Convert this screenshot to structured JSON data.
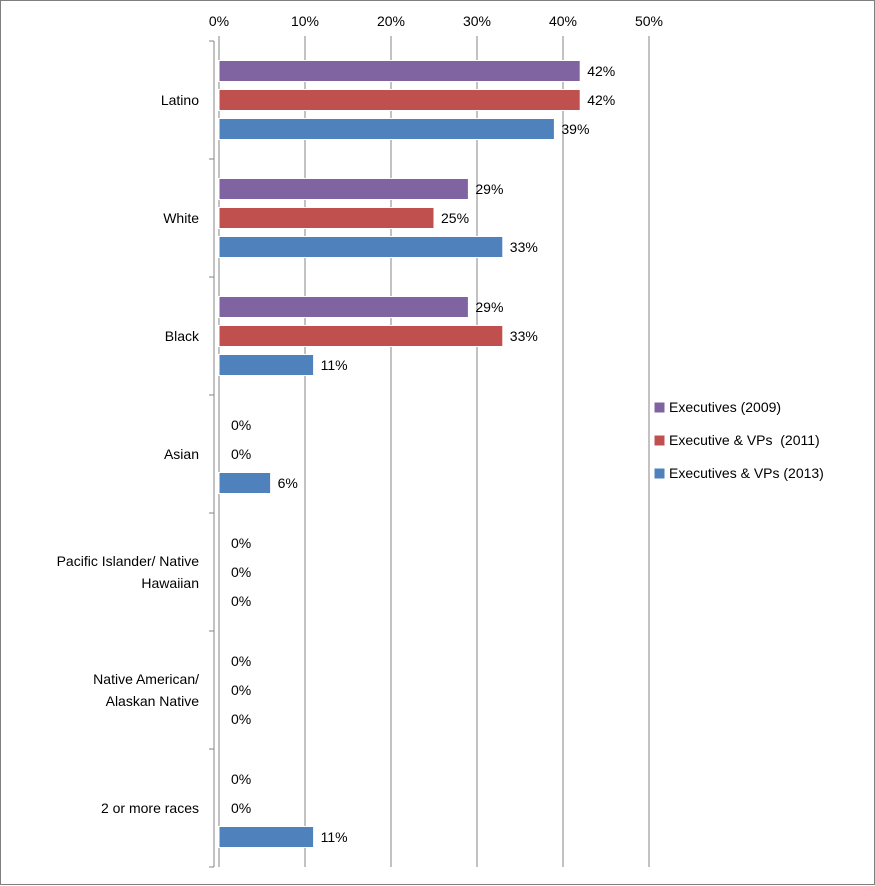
{
  "chart_data": {
    "type": "bar",
    "orientation": "horizontal",
    "categories": [
      "Latino",
      "White",
      "Black",
      "Asian",
      "Pacific Islander/ Native Hawaiian",
      "Native American/ Alaskan Native",
      "2 or more races"
    ],
    "category_label_lines": [
      [
        "Latino"
      ],
      [
        "White"
      ],
      [
        "Black"
      ],
      [
        "Asian"
      ],
      [
        "Pacific Islander/ Native",
        "Hawaiian"
      ],
      [
        "Native American/",
        "Alaskan Native"
      ],
      [
        "2 or more races"
      ]
    ],
    "series": [
      {
        "name": "Executives (2009)",
        "color": "#8064a2",
        "values": [
          42,
          29,
          29,
          0,
          0,
          0,
          0
        ],
        "labels": [
          "42%",
          "29%",
          "29%",
          "0%",
          "0%",
          "0%",
          "0%"
        ]
      },
      {
        "name": "Executive & VPs  (2011)",
        "color": "#c0504d",
        "values": [
          42,
          25,
          33,
          0,
          0,
          0,
          0
        ],
        "labels": [
          "42%",
          "25%",
          "33%",
          "0%",
          "0%",
          "0%",
          "0%"
        ]
      },
      {
        "name": "Executives & VPs (2013)",
        "color": "#4f81bd",
        "values": [
          39,
          33,
          11,
          6,
          0,
          0,
          11
        ],
        "labels": [
          "39%",
          "33%",
          "11%",
          "6%",
          "0%",
          "0%",
          "11%"
        ]
      }
    ],
    "xlim": [
      0,
      50
    ],
    "xticks": [
      "0%",
      "10%",
      "20%",
      "30%",
      "40%",
      "50%"
    ],
    "xaxis_position": "top",
    "grid": true,
    "legend_position": "right"
  }
}
